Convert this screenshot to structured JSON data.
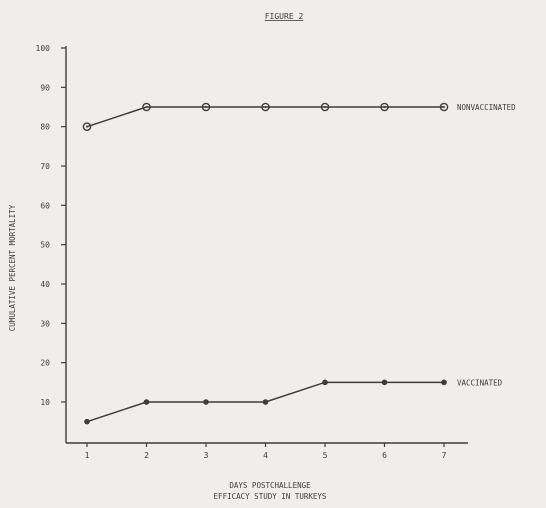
{
  "chart_data": {
    "type": "line",
    "title": "FIGURE 2",
    "xlabel": "DAYS POSTCHALLENGE",
    "subtitle": "EFFICACY STUDY IN TURKEYS",
    "ylabel": "CUMULATIVE PERCENT MORTALITY",
    "x": [
      1,
      2,
      3,
      4,
      5,
      6,
      7
    ],
    "xlim": [
      1,
      7
    ],
    "ylim": [
      0,
      100
    ],
    "yticks": [
      10,
      20,
      30,
      40,
      50,
      60,
      70,
      80,
      90,
      100
    ],
    "grid": false,
    "series": [
      {
        "name": "NONVACCINATED",
        "marker": "open-circle",
        "values": [
          80,
          85,
          85,
          85,
          85,
          85,
          85
        ]
      },
      {
        "name": "VACCINATED",
        "marker": "filled-circle",
        "values": [
          5,
          10,
          10,
          10,
          15,
          15,
          15
        ]
      }
    ]
  },
  "colors": {
    "ink": "#3d3d3d",
    "paper": "#efeeea"
  }
}
